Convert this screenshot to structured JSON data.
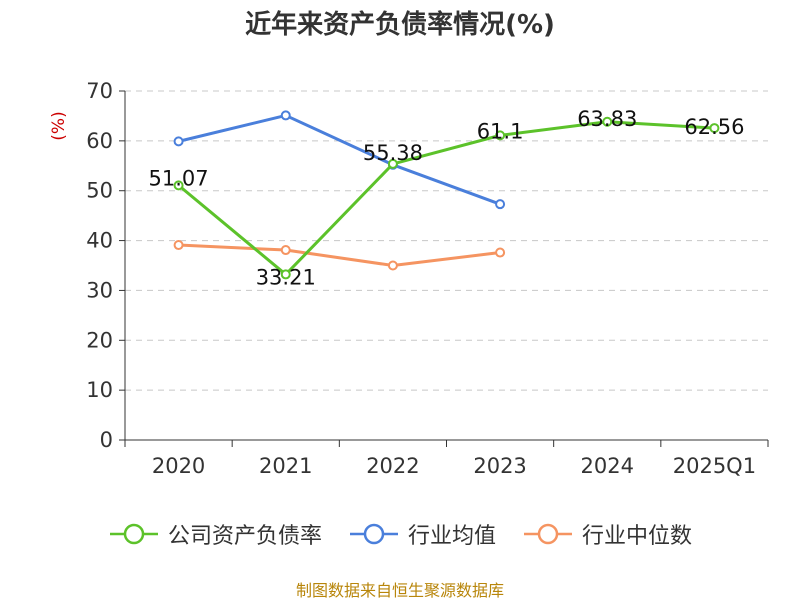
{
  "chart_data": {
    "type": "line",
    "title": "近年来资产负债率情况(%)",
    "ylabel": "(%)",
    "xlabel": "",
    "categories": [
      "2020",
      "2021",
      "2022",
      "2023",
      "2024",
      "2025Q1"
    ],
    "ylim": [
      0,
      70
    ],
    "yticks": [
      0,
      10,
      20,
      30,
      40,
      50,
      60,
      70
    ],
    "grid": true,
    "legend_position": "bottom",
    "series": [
      {
        "name": "公司资产负债率",
        "color": "#5cc22a",
        "values": [
          51.07,
          33.21,
          55.38,
          61.1,
          63.83,
          62.56
        ],
        "labels": [
          "51.07",
          "33.21",
          "55.38",
          "61.1",
          "63.83",
          "62.56"
        ]
      },
      {
        "name": "行业均值",
        "color": "#4a7fdb",
        "values": [
          59.9,
          65.1,
          55.2,
          47.3,
          null,
          null
        ]
      },
      {
        "name": "行业中位数",
        "color": "#f59461",
        "values": [
          39.1,
          38.1,
          35.0,
          37.6,
          null,
          null
        ]
      }
    ]
  },
  "source_note": "制图数据来自恒生聚源数据库"
}
